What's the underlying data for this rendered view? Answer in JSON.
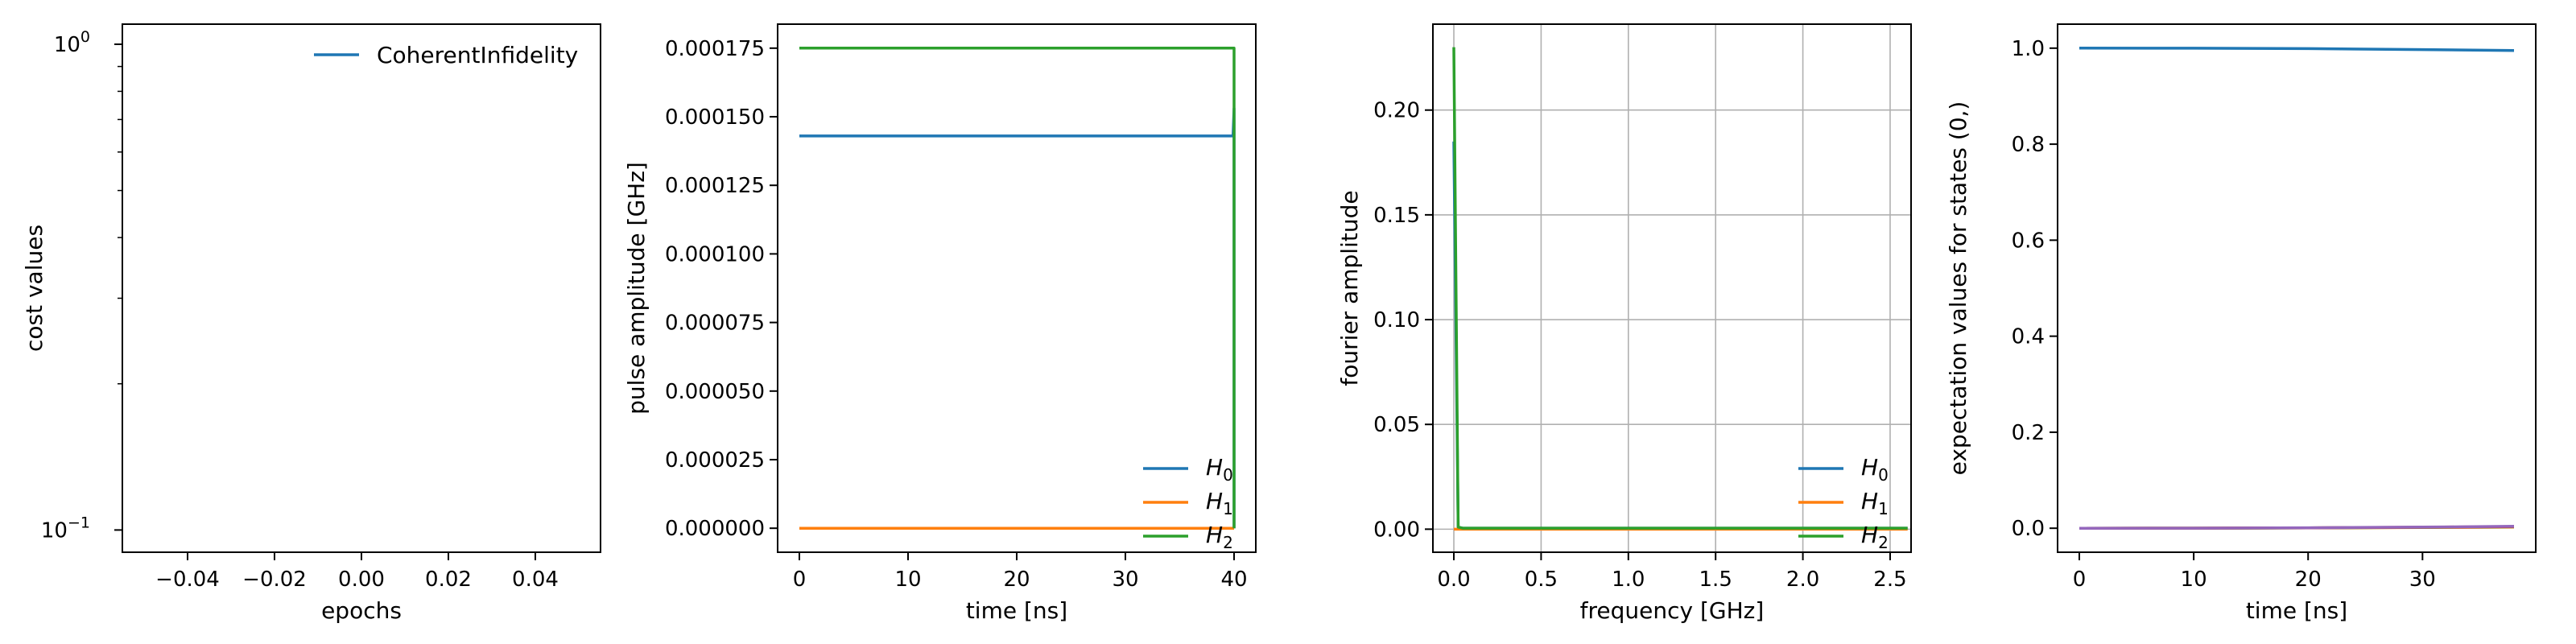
{
  "colors": {
    "c0": "#1f77b4",
    "c1": "#ff7f0e",
    "c2": "#2ca02c",
    "c3": "#d62728",
    "c4": "#9467bd"
  },
  "chart_data": [
    {
      "type": "line",
      "xlabel": "epochs",
      "ylabel": "cost values",
      "yscale": "log",
      "xlim": [
        -0.055,
        0.055
      ],
      "ylim": [
        0.09,
        1.1
      ],
      "xticks": [
        -0.04,
        -0.02,
        0.0,
        0.02,
        0.04
      ],
      "xticklabels": [
        "−0.04",
        "−0.02",
        "0.00",
        "0.02",
        "0.04"
      ],
      "yticks_major": [
        0.1,
        1.0
      ],
      "yticklabels": {
        "base": "10",
        "exps": [
          "−1",
          "0"
        ]
      },
      "yticks_minor": [
        0.2,
        0.3,
        0.4,
        0.5,
        0.6,
        0.7,
        0.8,
        0.9
      ],
      "legend": "top-right",
      "grid": false,
      "series": [
        {
          "name": "CoherentInfidelity",
          "color": "#1f77b4",
          "x": [],
          "y": []
        }
      ]
    },
    {
      "type": "line",
      "xlabel": "time [ns]",
      "ylabel": "pulse amplitude [GHz]",
      "xlim": [
        -2,
        42
      ],
      "ylim": [
        -8.75e-06,
        0.00018375
      ],
      "xticks": [
        0,
        10,
        20,
        30,
        40
      ],
      "xticklabels": [
        "0",
        "10",
        "20",
        "30",
        "40"
      ],
      "yticks": [
        0,
        2.5e-05,
        5e-05,
        7.5e-05,
        0.0001,
        0.000125,
        0.00015,
        0.000175
      ],
      "yticklabels": [
        "0.000000",
        "0.000025",
        "0.000050",
        "0.000075",
        "0.000100",
        "0.000125",
        "0.000150",
        "0.000175"
      ],
      "legend": "bottom-right",
      "grid": false,
      "series": [
        {
          "name": "H",
          "sub": "0",
          "color": "#1f77b4",
          "x": [
            0,
            39.9,
            40,
            40
          ],
          "y": [
            0.000143,
            0.000143,
            0.000153,
            0
          ]
        },
        {
          "name": "H",
          "sub": "1",
          "color": "#ff7f0e",
          "x": [
            0,
            40
          ],
          "y": [
            0,
            0
          ]
        },
        {
          "name": "H",
          "sub": "2",
          "color": "#2ca02c",
          "x": [
            0,
            39.8,
            40,
            40
          ],
          "y": [
            0.000175,
            0.000175,
            0.000175,
            0
          ]
        }
      ]
    },
    {
      "type": "line",
      "xlabel": "frequency [GHz]",
      "ylabel": "fourier amplitude",
      "xlim": [
        -0.12,
        2.62
      ],
      "ylim": [
        -0.011,
        0.241
      ],
      "xticks": [
        0,
        0.5,
        1.0,
        1.5,
        2.0,
        2.5
      ],
      "xticklabels": [
        "0.0",
        "0.5",
        "1.0",
        "1.5",
        "2.0",
        "2.5"
      ],
      "yticks": [
        0,
        0.05,
        0.1,
        0.15,
        0.2
      ],
      "yticklabels": [
        "0.00",
        "0.05",
        "0.10",
        "0.15",
        "0.20"
      ],
      "legend": "bottom-right",
      "grid": true,
      "series": [
        {
          "name": "H",
          "sub": "0",
          "color": "#1f77b4",
          "x": [
            0,
            0.025,
            0.05,
            2.6
          ],
          "y": [
            0.185,
            0.001,
            0.0005,
            0.0005
          ]
        },
        {
          "name": "H",
          "sub": "1",
          "color": "#ff7f0e",
          "x": [
            0,
            2.6
          ],
          "y": [
            0,
            0
          ]
        },
        {
          "name": "H",
          "sub": "2",
          "color": "#2ca02c",
          "x": [
            0,
            0.025,
            0.05,
            2.6
          ],
          "y": [
            0.23,
            0.001,
            0.0005,
            0.0005
          ]
        }
      ]
    },
    {
      "type": "line",
      "xlabel": "time [ns]",
      "ylabel": "expectation values for states (0,)",
      "xlim": [
        -1.9,
        39.9
      ],
      "ylim": [
        -0.05,
        1.05
      ],
      "xticks": [
        0,
        10,
        20,
        30
      ],
      "xticklabels": [
        "0",
        "10",
        "20",
        "30"
      ],
      "yticks": [
        0,
        0.2,
        0.4,
        0.6,
        0.8,
        1.0
      ],
      "yticklabels": [
        "0.0",
        "0.2",
        "0.4",
        "0.6",
        "0.8",
        "1.0"
      ],
      "legend": "none",
      "grid": false,
      "series": [
        {
          "color": "#1f77b4",
          "x": [
            0,
            10,
            20,
            30,
            38
          ],
          "y": [
            1.0,
            0.9999,
            0.999,
            0.997,
            0.995
          ]
        },
        {
          "color": "#ff7f0e",
          "x": [
            0,
            10,
            20,
            30,
            38
          ],
          "y": [
            0,
            0.0001,
            0.0006,
            0.0015,
            0.0025
          ]
        },
        {
          "color": "#2ca02c",
          "x": [
            0,
            10,
            20,
            30,
            38
          ],
          "y": [
            0,
            0.0001,
            0.0007,
            0.0018,
            0.003
          ]
        },
        {
          "color": "#d62728",
          "x": [
            0,
            10,
            20,
            30,
            38
          ],
          "y": [
            0,
            0.0001,
            0.0008,
            0.002,
            0.0035
          ]
        },
        {
          "color": "#9467bd",
          "x": [
            0,
            10,
            20,
            30,
            38
          ],
          "y": [
            0,
            0.0001,
            0.0009,
            0.0024,
            0.004
          ]
        }
      ]
    }
  ]
}
